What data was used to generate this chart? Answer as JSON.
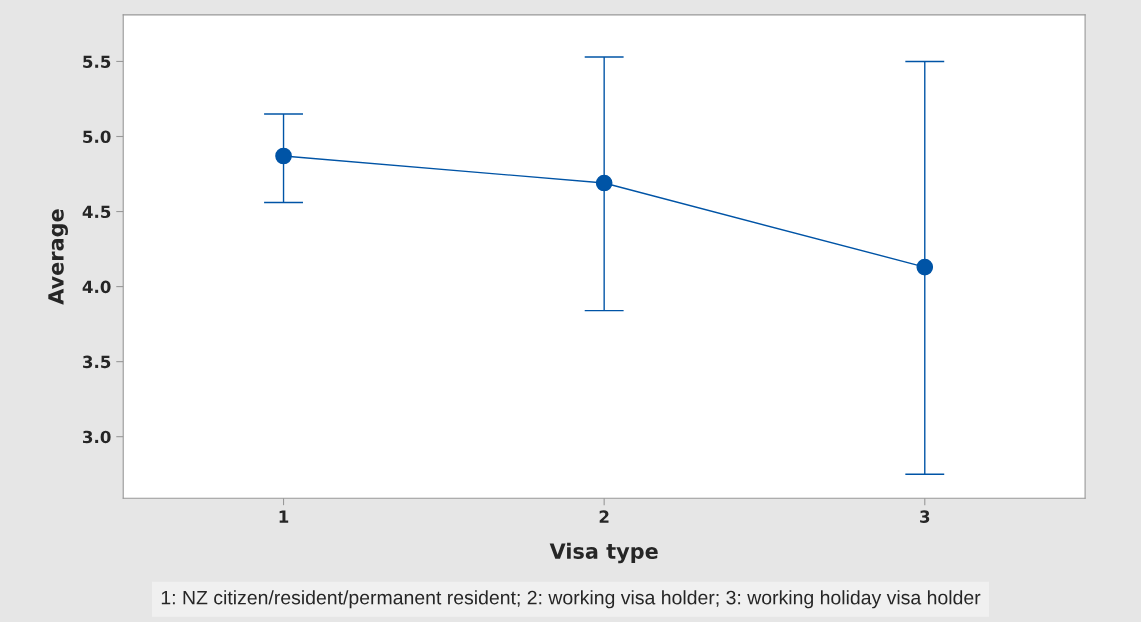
{
  "chart_data": {
    "type": "line",
    "xlabel": "Visa type",
    "ylabel": "Average",
    "x": [
      1,
      2,
      3
    ],
    "series": [
      {
        "color": "#0054a6",
        "values": [
          4.87,
          4.69,
          4.13
        ],
        "errors": [
          [
            4.56,
            5.15
          ],
          [
            3.84,
            5.53
          ],
          [
            2.75,
            5.5
          ]
        ]
      }
    ],
    "xlim": [
      0.5,
      3.5
    ],
    "xticks": [
      1,
      2,
      3
    ],
    "ylim": [
      2.59,
      5.81
    ],
    "yticks": [
      {
        "value": 3,
        "label": "3.0"
      },
      3.5,
      {
        "value": 4,
        "label": "4.0"
      },
      4.5,
      {
        "value": 5,
        "label": "5.0"
      },
      5.5
    ],
    "grid": false,
    "marker": "circle",
    "line_style": "solid",
    "annotations": [
      "1: NZ citizen/resident/permanent resident; 2: working visa holder; 3: working holiday visa holder"
    ]
  }
}
